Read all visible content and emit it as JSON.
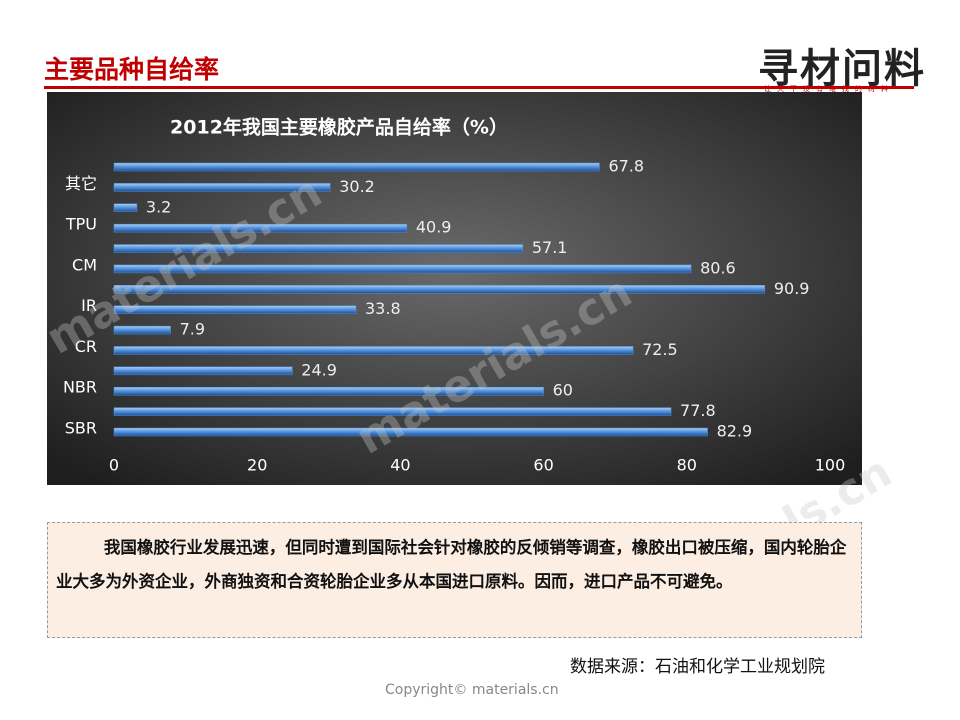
{
  "header": {
    "title": "主要品种自给率",
    "logo": "寻材问料",
    "logo_tagline": "让天下没有难找的材料"
  },
  "chart_data": {
    "type": "bar",
    "orientation": "horizontal",
    "title": "2012年我国主要橡胶产品自给率（%）",
    "categories": [
      "SBR",
      null,
      "NBR",
      null,
      "CR",
      null,
      "IR",
      null,
      "CM",
      null,
      "TPU",
      null,
      "其它",
      null
    ],
    "values": [
      82.9,
      77.8,
      60,
      24.9,
      72.5,
      7.9,
      33.8,
      90.9,
      80.6,
      57.1,
      40.9,
      3.2,
      30.2,
      67.8
    ],
    "color": "#4f8fd8",
    "xlim": [
      0,
      100
    ],
    "xticks": [
      0,
      20,
      40,
      60,
      80,
      100
    ],
    "grid": false
  },
  "text_box": "我国橡胶行业发展迅速，但同时遭到国际社会针对橡胶的反倾销等调查，橡胶出口被压缩，国内轮胎企业大多为外资企业，外商独资和合资轮胎企业多从本国进口原料。因而，进口产品不可避免。",
  "source": "数据来源：石油和化学工业规划院",
  "copyright": "Copyright© materials.cn",
  "watermark": "materials.cn"
}
